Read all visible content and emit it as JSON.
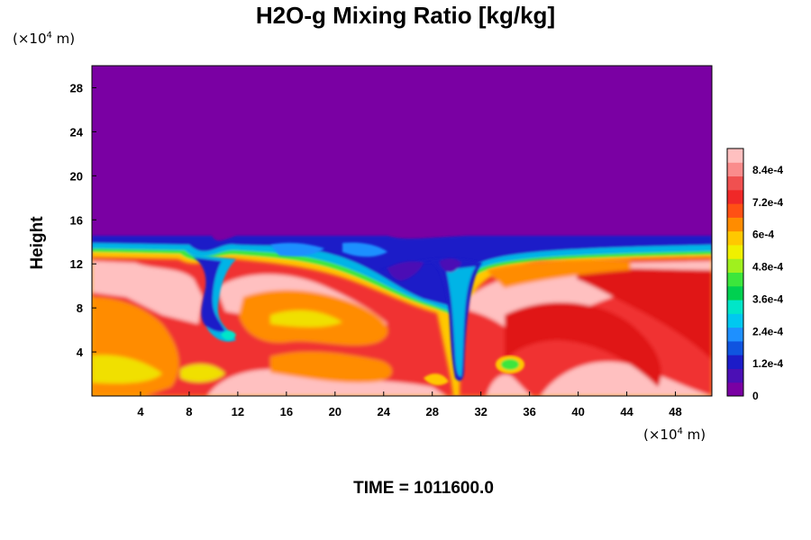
{
  "chart_data": {
    "type": "heatmap",
    "title": "H2O-g Mixing Ratio [kg/kg]",
    "xunit_label": "(×10",
    "xunit_exp": "4",
    "xunit_tail": " m)",
    "yunit_label": "(×10",
    "yunit_exp": "4",
    "yunit_tail": " m)",
    "ylabel": "Height",
    "xlim": [
      0,
      51
    ],
    "ylim": [
      0,
      30
    ],
    "xticks": [
      4,
      8,
      12,
      16,
      20,
      24,
      28,
      32,
      36,
      40,
      44,
      48
    ],
    "yticks": [
      4,
      8,
      12,
      16,
      20,
      24,
      28
    ],
    "colorbar": {
      "min": 0,
      "max": 0.00092,
      "labels": [
        {
          "text": "0",
          "value": 0
        },
        {
          "text": "1.2e-4",
          "value": 0.00012
        },
        {
          "text": "2.4e-4",
          "value": 0.00024
        },
        {
          "text": "3.6e-4",
          "value": 0.00036
        },
        {
          "text": "4.8e-4",
          "value": 0.00048
        },
        {
          "text": "6e-4",
          "value": 0.0006
        },
        {
          "text": "7.2e-4",
          "value": 0.00072
        },
        {
          "text": "8.4e-4",
          "value": 0.00084
        }
      ],
      "colors": [
        "#7a00a3",
        "#4b0fb5",
        "#1c1cc8",
        "#0f54e0",
        "#1e90ff",
        "#00c8f0",
        "#00e6c8",
        "#00d050",
        "#3ce63c",
        "#a0f01e",
        "#f0f000",
        "#ffc800",
        "#ff8c00",
        "#ff5014",
        "#f02828",
        "#f05050",
        "#fa8c8c",
        "#ffc0c0"
      ]
    },
    "caption": "TIME = 1011600.0"
  }
}
